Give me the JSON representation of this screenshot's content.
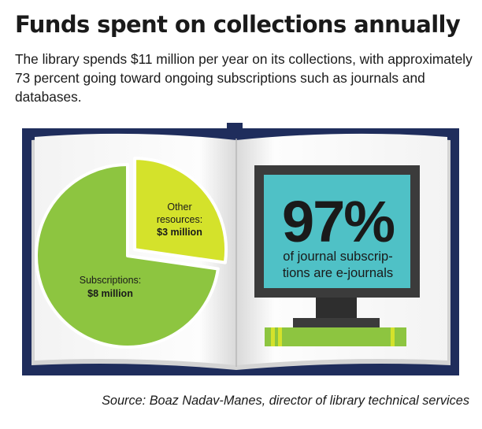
{
  "title": "Funds spent on collections annually",
  "subtitle": "The library spends $11 million per year on its collections, with approximately 73 percent going toward ongoing subscriptions such as journals and databases.",
  "source": "Source: Boaz Nadav-Manes, director of library technical services",
  "colors": {
    "book_cover": "#1f2d5c",
    "subscriptions": "#8dc540",
    "other_resources": "#d4e22b",
    "screen": "#4fc1c6",
    "monitor": "#3b3b3b",
    "book_spine": "#8dc540"
  },
  "chart_data": {
    "type": "pie",
    "slices": [
      {
        "label_line1": "Subscriptions:",
        "label_line2": "$8 million",
        "value": 8,
        "color": "#8dc540"
      },
      {
        "label_line1": "Other",
        "label_line1b": "resources:",
        "label_line2": "$3 million",
        "value": 3,
        "color": "#d4e22b"
      }
    ],
    "total": 11
  },
  "callout": {
    "value": "97%",
    "line1": "of journal subscrip-",
    "line2": "tions are e-journals"
  },
  "icons": [
    "open-book-icon",
    "computer-monitor-icon",
    "closed-book-icon"
  ]
}
